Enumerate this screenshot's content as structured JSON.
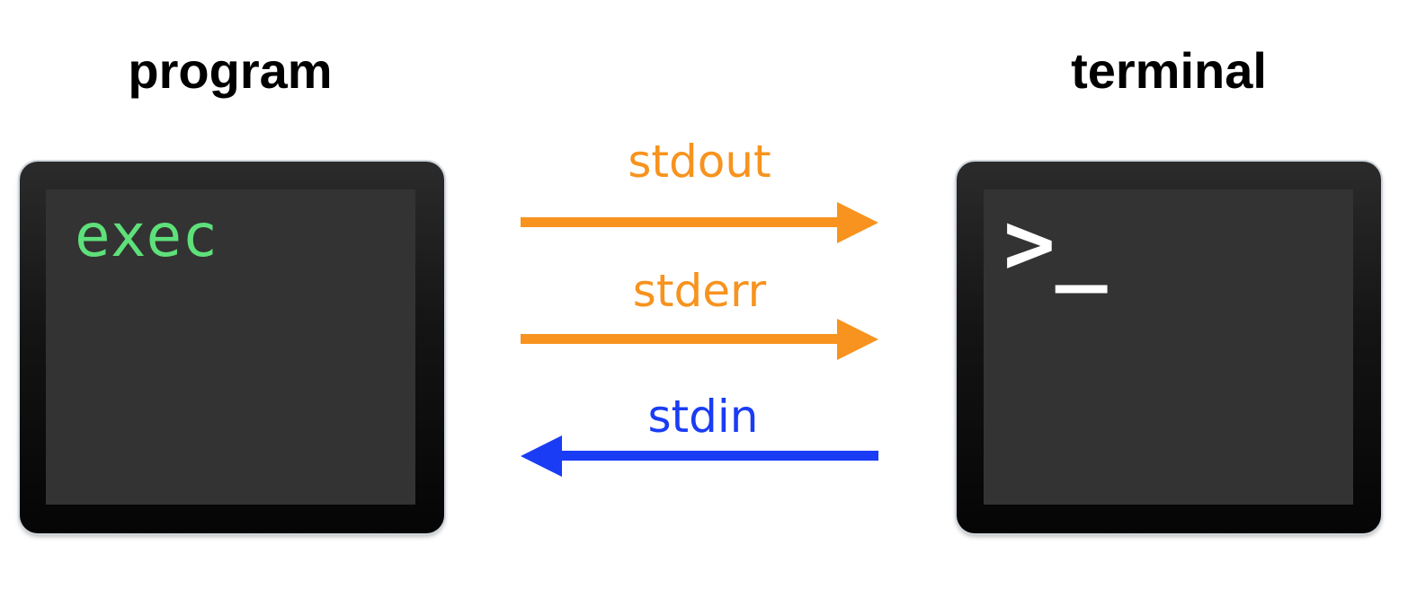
{
  "program": {
    "title": "program",
    "screen_text": "exec",
    "screen_text_color": "#5ee07a"
  },
  "terminal": {
    "title": "terminal",
    "prompt": ">_",
    "prompt_color": "#ffffff"
  },
  "streams": [
    {
      "label": "stdout",
      "direction": "program-to-terminal",
      "color": "#f7931e"
    },
    {
      "label": "stderr",
      "direction": "program-to-terminal",
      "color": "#f7931e"
    },
    {
      "label": "stdin",
      "direction": "terminal-to-program",
      "color": "#1a3cf5"
    }
  ],
  "colors": {
    "window_frame": "#0a0a0a",
    "window_screen": "#333333",
    "background": "#ffffff"
  }
}
